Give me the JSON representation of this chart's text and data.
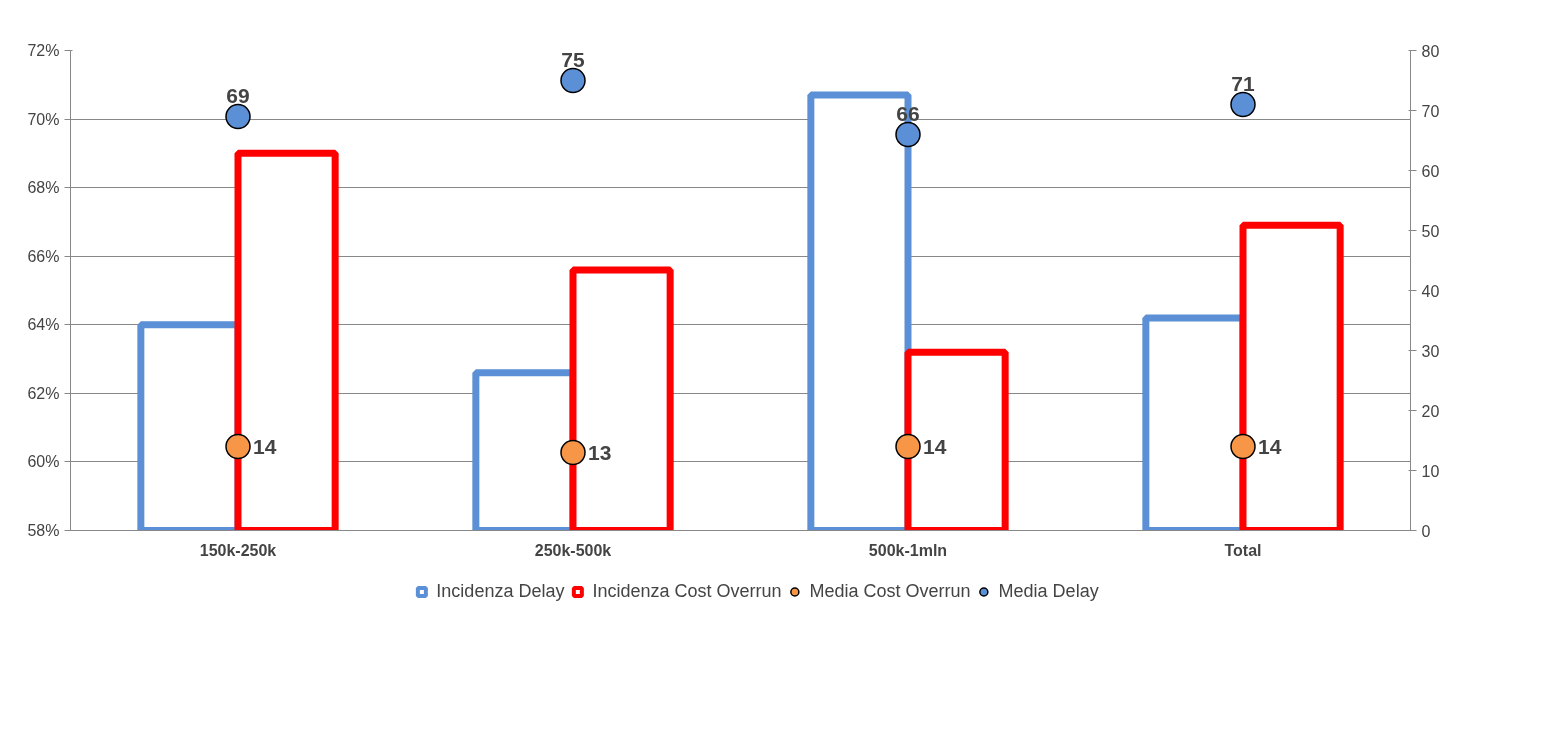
{
  "chart_data": {
    "type": "bar",
    "categories": [
      "150k-250k",
      "250k-500k",
      "500k-1mln",
      "Total"
    ],
    "series": [
      {
        "name": "Incidenza Delay",
        "color": "#5b8fd6",
        "values": [
          64.0,
          62.6,
          70.7,
          64.2
        ]
      },
      {
        "name": "Incidenza Cost Overrun",
        "color": "#ff0000",
        "values": [
          69.0,
          65.6,
          63.2,
          66.9
        ]
      },
      {
        "name": "Media Cost Overrun",
        "type": "scatter",
        "axis": "y2",
        "color": "#f79646",
        "values": [
          14,
          13,
          14,
          14
        ],
        "value_labels": [
          "14",
          "13",
          "14",
          "14"
        ]
      },
      {
        "name": "Media Delay",
        "type": "scatter",
        "axis": "y2",
        "color": "#5b8fd6",
        "values": [
          69,
          75,
          66,
          71
        ],
        "value_labels": [
          "69",
          "75",
          "66",
          "71"
        ]
      }
    ],
    "ylim": [
      58,
      72
    ],
    "yticks": [
      {
        "value": 58,
        "label": "58%"
      },
      {
        "value": 60,
        "label": "60%"
      },
      {
        "value": 62,
        "label": "62%"
      },
      {
        "value": 64,
        "label": "64%"
      },
      {
        "value": 66,
        "label": "66%"
      },
      {
        "value": 68,
        "label": "68%"
      },
      {
        "value": 70,
        "label": "70%"
      },
      {
        "value": 72,
        "label": "72%"
      }
    ],
    "y2lim": [
      0,
      80
    ],
    "y2ticks": [
      0,
      10,
      20,
      30,
      40,
      50,
      60,
      70,
      80
    ],
    "grid": "y",
    "legend": "bottom",
    "marker": "circle"
  }
}
